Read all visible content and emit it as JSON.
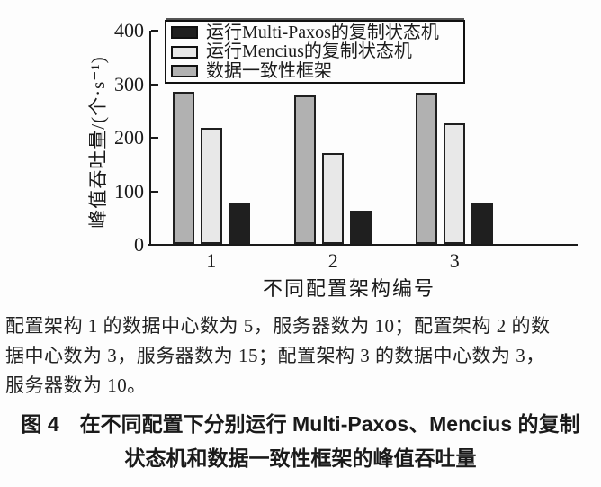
{
  "chart_data": {
    "type": "bar",
    "title": "",
    "categories": [
      "1",
      "2",
      "3"
    ],
    "series": [
      {
        "name": "运行Multi-Paxos的复制状态机",
        "color": "#1f1f1f",
        "values": [
          75,
          62,
          78
        ]
      },
      {
        "name": "运行Mencius的复制状态机",
        "color": "#e8e8e8",
        "values": [
          218,
          170,
          225
        ]
      },
      {
        "name": "数据一致性框架",
        "color": "#b1b1b1",
        "values": [
          285,
          277,
          283
        ]
      }
    ],
    "bar_draw_order": [
      2,
      1,
      0
    ],
    "xlabel": "不同配置架构编号",
    "ylabel": "峰值吞吐量/(个·s⁻¹)",
    "yticks": [
      0,
      100,
      200,
      300,
      400
    ],
    "ylim": [
      0,
      400
    ],
    "legend_position": "top-inside",
    "grid": false,
    "axis_color": "#1a1a1a",
    "background_color": "#fdfdfd"
  },
  "figure": {
    "note_lines": [
      "配置架构 1 的数据中心数为 5，服务器数为 10；配置架构 2 的数",
      "据中心数为 3，服务器数为 15；配置架构 3 的数据中心数为 3，",
      "服务器数为 10。"
    ],
    "caption_lines": [
      "图 4　在不同配置下分别运行 Multi-Paxos、Mencius 的复制",
      "状态机和数据一致性框架的峰值吞吐量"
    ]
  }
}
